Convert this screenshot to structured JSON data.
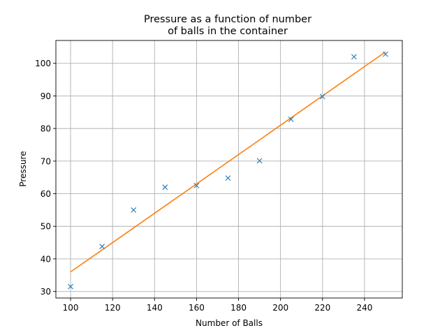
{
  "chart_data": {
    "type": "scatter",
    "title_line1": "Pressure as a function of number",
    "title_line2": "of balls in the container",
    "xlabel": "Number of Balls",
    "ylabel": "Pressure",
    "xlim": [
      93,
      258
    ],
    "ylim": [
      28,
      107
    ],
    "xticks": [
      100,
      120,
      140,
      160,
      180,
      200,
      220,
      240
    ],
    "yticks": [
      30,
      40,
      50,
      60,
      70,
      80,
      90,
      100
    ],
    "grid": true,
    "series": [
      {
        "kind": "markers",
        "marker": "x",
        "color": "#1f77b4",
        "x": [
          100,
          115,
          130,
          145,
          160,
          175,
          190,
          205,
          220,
          235,
          250
        ],
        "y": [
          31.5,
          43.8,
          55.0,
          62.0,
          62.5,
          64.8,
          70.1,
          82.8,
          89.8,
          102.0,
          102.8
        ]
      },
      {
        "kind": "line",
        "color": "#ff7f0e",
        "x": [
          100,
          250
        ],
        "y": [
          36.0,
          103.5
        ]
      }
    ]
  }
}
